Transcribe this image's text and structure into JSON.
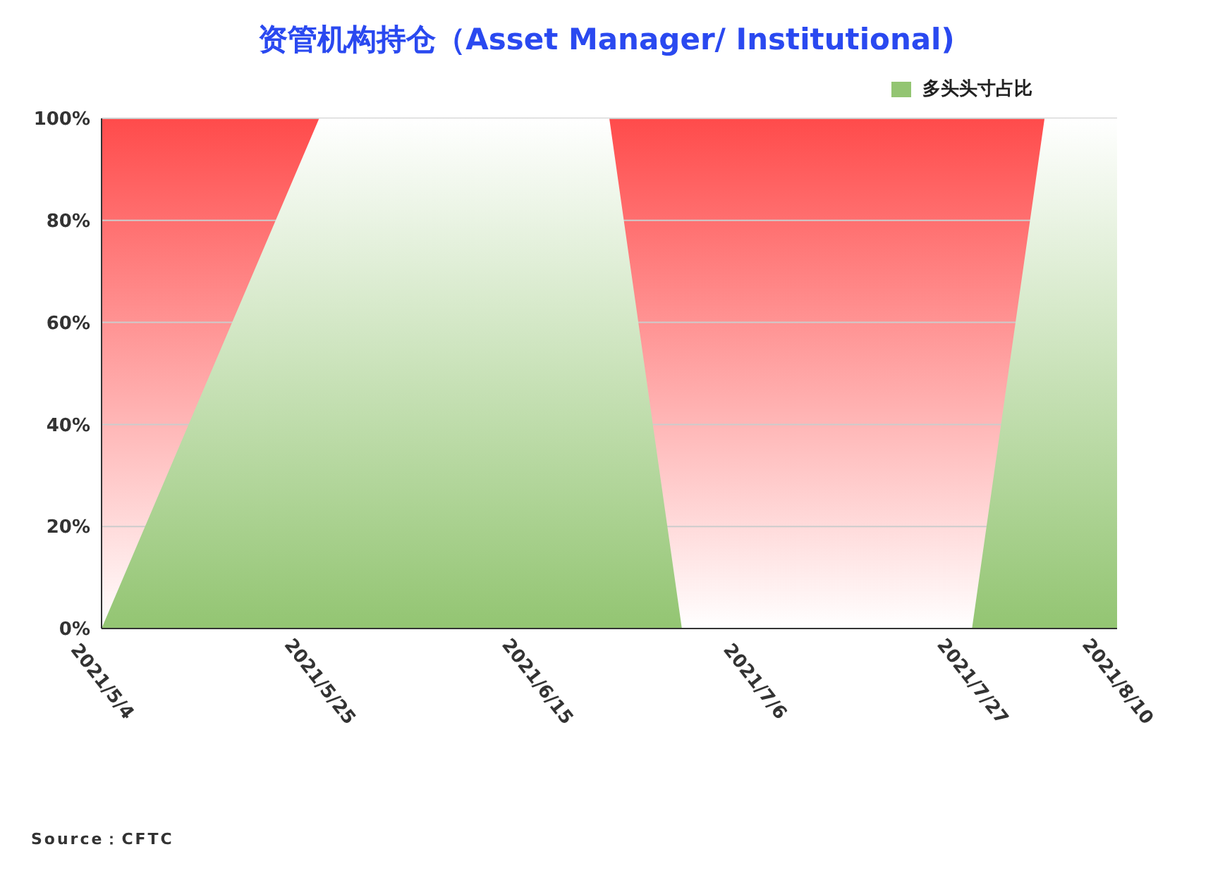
{
  "chart_data": {
    "type": "area",
    "title": "资管机构持仓（Asset Manager/ Institutional)",
    "x": [
      "2021-05-04",
      "2021-05-25",
      "2021-06-01",
      "2021-06-08",
      "2021-06-15",
      "2021-06-22",
      "2021-06-29",
      "2021-07-06",
      "2021-07-13",
      "2021-07-20",
      "2021-07-27",
      "2021-08-03",
      "2021-08-10"
    ],
    "series": [
      {
        "name": "多头头寸占比",
        "color": "#93c572",
        "values": [
          0,
          100,
          100,
          100,
          100,
          100,
          0,
          0,
          0,
          0,
          0,
          100,
          100
        ]
      }
    ],
    "xlim": [
      "2021-05-04",
      "2021-08-10"
    ],
    "xticks": [
      {
        "value": "2021-05-04",
        "label": "2021/5/4"
      },
      {
        "value": "2021-05-25",
        "label": "2021/5/25"
      },
      {
        "value": "2021-06-15",
        "label": "2021/6/15"
      },
      {
        "value": "2021-07-06",
        "label": "2021/7/6"
      },
      {
        "value": "2021-07-27",
        "label": "2021/7/27"
      },
      {
        "value": "2021-08-10",
        "label": "2021/8/10"
      }
    ],
    "ylim": [
      0,
      100
    ],
    "yticks": [
      {
        "value": 0,
        "label": "0%"
      },
      {
        "value": 20,
        "label": "20%"
      },
      {
        "value": 40,
        "label": "40%"
      },
      {
        "value": 60,
        "label": "60%"
      },
      {
        "value": 80,
        "label": "80%"
      },
      {
        "value": 100,
        "label": "100%"
      }
    ],
    "grid": "y",
    "legend": "top right",
    "annotations": [
      "Source：CFTC"
    ]
  }
}
